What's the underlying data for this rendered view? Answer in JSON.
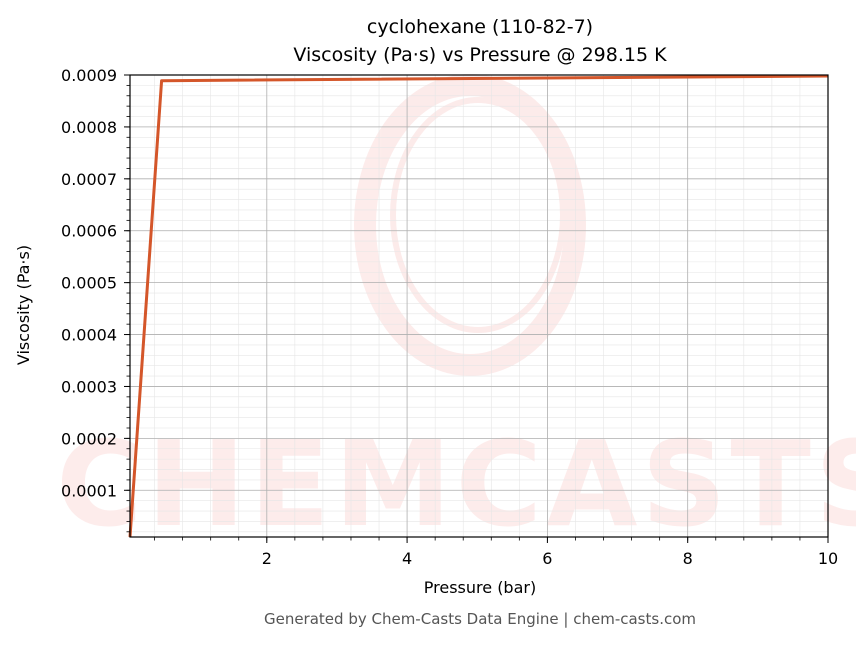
{
  "chart_data": {
    "type": "line",
    "title_line1": "cyclohexane (110-82-7)",
    "title_line2": "Viscosity (Pa·s) vs Pressure @ 298.15 K",
    "xlabel": "Pressure (bar)",
    "ylabel": "Viscosity (Pa·s)",
    "xlim": [
      0.05,
      10
    ],
    "ylim": [
      1e-05,
      0.0009
    ],
    "x_ticks": [
      2,
      4,
      6,
      8,
      10
    ],
    "x_tick_labels": [
      "2",
      "4",
      "6",
      "8",
      "10"
    ],
    "y_ticks": [
      0.0001,
      0.0002,
      0.0003,
      0.0004,
      0.0005,
      0.0006,
      0.0007,
      0.0008,
      0.0009
    ],
    "y_tick_labels": [
      "0.0001",
      "0.0002",
      "0.0003",
      "0.0004",
      "0.0005",
      "0.0006",
      "0.0007",
      "0.0008",
      "0.0009"
    ],
    "grid": true,
    "series": [
      {
        "color": "#d4562a",
        "x": [
          0.05,
          0.5,
          10
        ],
        "y": [
          1e-05,
          0.000889,
          0.000898
        ]
      }
    ],
    "watermark": "CHEMCASTS",
    "footer": "Generated by Chem-Casts Data Engine | chem-casts.com"
  }
}
